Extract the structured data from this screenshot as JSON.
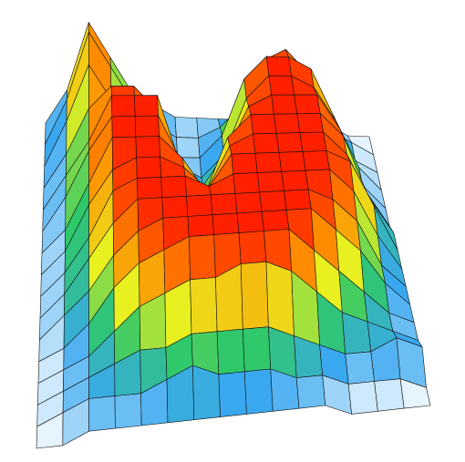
{
  "chart_data": {
    "type": "surface",
    "zlim": [
      0,
      10
    ],
    "colorscale": [
      "#ffffff",
      "#3aa8f0",
      "#2fc86a",
      "#e8f020",
      "#ff8c00",
      "#ff2000"
    ],
    "z": [
      [
        0,
        3,
        9,
        6,
        3,
        2,
        1,
        1,
        1,
        1,
        2,
        3,
        2,
        1,
        0,
        0
      ],
      [
        0,
        4,
        10,
        7,
        4,
        2,
        1,
        1,
        2,
        4,
        8,
        9,
        7,
        2,
        1,
        0
      ],
      [
        0,
        4,
        9,
        6,
        4,
        2,
        1,
        1,
        3,
        8,
        10,
        10,
        9,
        5,
        1,
        0
      ],
      [
        0,
        3,
        7,
        9,
        9,
        7,
        2,
        1,
        3,
        8,
        10,
        10,
        9,
        6,
        2,
        0
      ],
      [
        0,
        3,
        6,
        10,
        10,
        10,
        4,
        2,
        5,
        9,
        10,
        10,
        10,
        7,
        2,
        0
      ],
      [
        0,
        3,
        7,
        10,
        10,
        10,
        6,
        3,
        8,
        10,
        10,
        10,
        10,
        8,
        3,
        0
      ],
      [
        0,
        2,
        6,
        10,
        10,
        10,
        8,
        5,
        9,
        10,
        10,
        10,
        10,
        8,
        4,
        1
      ],
      [
        0,
        2,
        6,
        9,
        10,
        10,
        9,
        7,
        10,
        10,
        10,
        10,
        10,
        9,
        5,
        1
      ],
      [
        0,
        2,
        5,
        9,
        10,
        10,
        10,
        9,
        10,
        10,
        10,
        10,
        10,
        8,
        4,
        1
      ],
      [
        0,
        2,
        5,
        8,
        10,
        10,
        10,
        10,
        10,
        10,
        10,
        10,
        9,
        7,
        3,
        1
      ],
      [
        0,
        2,
        4,
        7,
        9,
        10,
        10,
        10,
        10,
        10,
        10,
        10,
        8,
        6,
        3,
        1
      ],
      [
        0,
        1,
        3,
        6,
        8,
        9,
        10,
        10,
        10,
        10,
        10,
        8,
        6,
        4,
        2,
        1
      ],
      [
        0,
        1,
        2,
        4,
        6,
        7,
        8,
        8,
        9,
        9,
        8,
        6,
        4,
        3,
        2,
        1
      ],
      [
        0,
        1,
        2,
        3,
        4,
        4,
        5,
        5,
        5,
        5,
        4,
        3,
        2,
        2,
        3,
        2
      ],
      [
        0,
        1,
        2,
        2,
        2,
        3,
        4,
        3,
        3,
        3,
        2,
        2,
        1,
        1,
        1,
        0
      ],
      [
        0,
        0,
        1,
        1,
        1,
        1,
        1,
        1,
        1,
        1,
        1,
        1,
        0,
        0,
        0,
        0
      ]
    ]
  }
}
